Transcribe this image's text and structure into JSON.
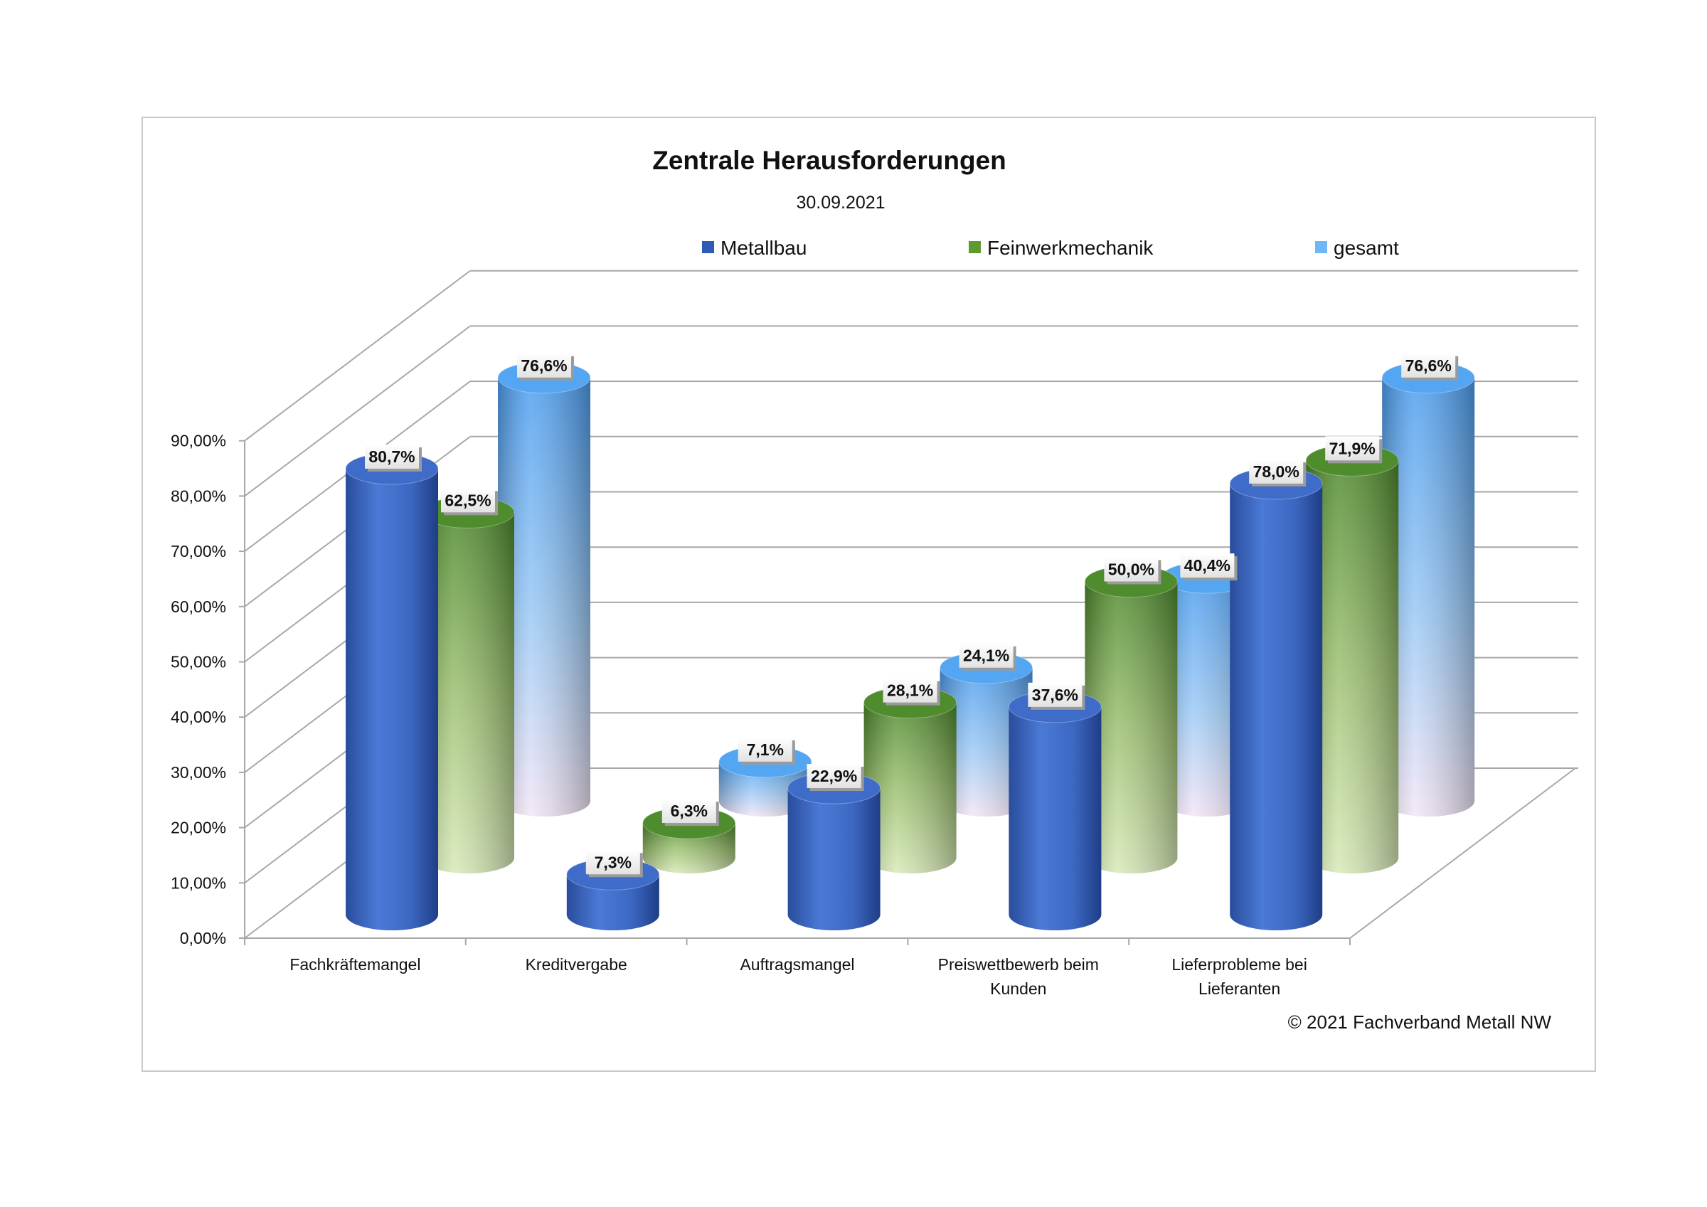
{
  "chart_data": {
    "type": "bar",
    "subtype": "3d-cylinder",
    "title": "Zentrale Herausforderungen",
    "subtitle": "30.09.2021",
    "categories": [
      [
        "Fachkräftemangel"
      ],
      [
        "Kreditvergabe"
      ],
      [
        "Auftragsmangel"
      ],
      [
        "Preiswettbewerb beim",
        "Kunden"
      ],
      [
        "Lieferprobleme bei",
        "Lieferanten"
      ]
    ],
    "series": [
      {
        "name": "Metallbau",
        "color": "#3a66c4",
        "values": [
          80.7,
          7.3,
          22.9,
          37.6,
          78.0
        ],
        "labels": [
          "80,7%",
          "7,3%",
          "22,9%",
          "37,6%",
          "78,0%"
        ]
      },
      {
        "name": "Feinwerkmechanik",
        "color": "#6a9e3a",
        "values": [
          62.5,
          6.3,
          28.1,
          50.0,
          71.9
        ],
        "labels": [
          "62,5%",
          "6,3%",
          "28,1%",
          "50,0%",
          "71,9%"
        ]
      },
      {
        "name": "gesamt",
        "color": "#5eaaf0",
        "values": [
          76.6,
          7.1,
          24.1,
          40.4,
          76.6
        ],
        "labels": [
          "76,6%",
          "7,1%",
          "24,1%",
          "40,4%",
          "76,6%"
        ]
      }
    ],
    "yticks": [
      "0,00%",
      "10,00%",
      "20,00%",
      "30,00%",
      "40,00%",
      "50,00%",
      "60,00%",
      "70,00%",
      "80,00%",
      "90,00%"
    ],
    "ylim": [
      0,
      90
    ],
    "legend_position": "top",
    "grid": true,
    "xlabel": "",
    "ylabel": ""
  },
  "footer": {
    "copyright": "© 2021 Fachverband Metall NW"
  }
}
